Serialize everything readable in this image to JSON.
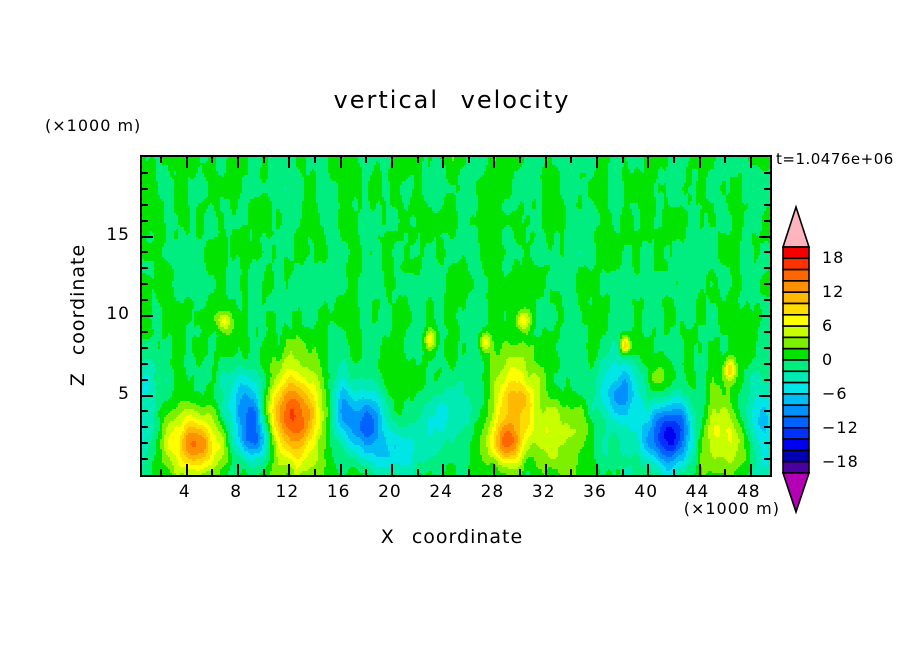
{
  "chart_data": {
    "type": "heatmap",
    "title": "vertical velocity",
    "timestamp_label": "t=1.0476e+06",
    "xlabel": "X coordinate",
    "ylabel": "Z coordinate",
    "x_unit_label": "(×1000 m)",
    "z_unit_label": "(×1000 m)",
    "x_range": [
      0.5,
      49.5
    ],
    "z_range": [
      0,
      20
    ],
    "x_major_ticks": [
      4,
      8,
      12,
      16,
      20,
      24,
      28,
      32,
      36,
      40,
      44,
      48
    ],
    "x_minor_ticks": [
      2,
      6,
      10,
      14,
      18,
      22,
      26,
      30,
      34,
      38,
      42,
      46
    ],
    "z_major_ticks": [
      5,
      10,
      15
    ],
    "z_minor_ticks": [
      1,
      2,
      3,
      4,
      6,
      7,
      8,
      9,
      11,
      12,
      13,
      14,
      16,
      17,
      18,
      19
    ],
    "colorbar": {
      "labeled_levels": [
        "18",
        "12",
        "6",
        "0",
        "−6",
        "−12",
        "−18"
      ],
      "labeled_level_values": [
        18,
        12,
        6,
        0,
        -6,
        -12,
        -18
      ],
      "min": -20,
      "max": 20,
      "cell_value_step": 2,
      "colors_top_to_bottom": [
        "#f50000",
        "#ff3200",
        "#ff6600",
        "#ff9100",
        "#ffb900",
        "#ffdc00",
        "#ffff00",
        "#c8ff00",
        "#7df000",
        "#00e400",
        "#00ed80",
        "#00ebb4",
        "#00e6e6",
        "#00bef5",
        "#0091ff",
        "#0062ff",
        "#0032ff",
        "#0000f0",
        "#0000b4",
        "#4b00a0"
      ],
      "over_color": "#ffb4be",
      "under_color": "#b400b4",
      "outline_color": "#000000"
    },
    "background_value": 0,
    "features": [
      {
        "x": 4.7,
        "z": 1.9,
        "peak": 13,
        "sx": 1.5,
        "sz": 1.4
      },
      {
        "x": 8.7,
        "z": 3.9,
        "peak": -10.5,
        "sx": 1.1,
        "sz": 1.7
      },
      {
        "x": 9.5,
        "z": 2.2,
        "peak": -7,
        "sx": 0.8,
        "sz": 1.0
      },
      {
        "x": 12.4,
        "z": 3.6,
        "peak": 15.5,
        "sx": 1.6,
        "sz": 2.1
      },
      {
        "x": 16.2,
        "z": 4.0,
        "peak": -9,
        "sx": 0.9,
        "sz": 1.6
      },
      {
        "x": 18.3,
        "z": 3.1,
        "peak": -9.5,
        "sx": 0.85,
        "sz": 1.4
      },
      {
        "x": 20.3,
        "z": 1.2,
        "peak": -4.5,
        "sx": 1.3,
        "sz": 1.0
      },
      {
        "x": 23.0,
        "z": 2.9,
        "peak": -3.8,
        "sx": 1.6,
        "sz": 1.4
      },
      {
        "x": 25.6,
        "z": 4.6,
        "peak": -3.2,
        "sx": 1.4,
        "sz": 1.3
      },
      {
        "x": 29.6,
        "z": 4.6,
        "peak": 11.5,
        "sx": 1.35,
        "sz": 1.9
      },
      {
        "x": 28.8,
        "z": 1.9,
        "peak": 11,
        "sx": 0.9,
        "sz": 0.9
      },
      {
        "x": 33.6,
        "z": 2.4,
        "peak": 5.2,
        "sx": 1.7,
        "sz": 1.4
      },
      {
        "x": 37.7,
        "z": 5.1,
        "peak": -9,
        "sx": 1.2,
        "sz": 1.5
      },
      {
        "x": 36.5,
        "z": 1.5,
        "peak": -2.5,
        "sx": 1.2,
        "sz": 1.0
      },
      {
        "x": 41.6,
        "z": 2.6,
        "peak": -15,
        "sx": 1.4,
        "sz": 1.5
      },
      {
        "x": 40.8,
        "z": 6.0,
        "peak": 4.5,
        "sx": 0.7,
        "sz": 1.3
      },
      {
        "x": 45.8,
        "z": 2.4,
        "peak": 7,
        "sx": 1.2,
        "sz": 1.6
      },
      {
        "x": 48.9,
        "z": 3.0,
        "peak": -5.5,
        "sx": 1.0,
        "sz": 2.2
      },
      {
        "x": 0.6,
        "z": 2.5,
        "peak": -4.5,
        "sx": 0.8,
        "sz": 1.8
      },
      {
        "x": 0.8,
        "z": 6.0,
        "peak": -3.5,
        "sx": 0.9,
        "sz": 1.5
      },
      {
        "x": 6.9,
        "z": 9.7,
        "peak": 6.5,
        "sx": 0.35,
        "sz": 0.4
      },
      {
        "x": 23.0,
        "z": 8.5,
        "peak": 6.5,
        "sx": 0.3,
        "sz": 0.4
      },
      {
        "x": 27.3,
        "z": 8.4,
        "peak": 6.8,
        "sx": 0.3,
        "sz": 0.4
      },
      {
        "x": 30.2,
        "z": 9.7,
        "peak": 6.5,
        "sx": 0.35,
        "sz": 0.4
      },
      {
        "x": 38.2,
        "z": 8.2,
        "peak": 10,
        "sx": 0.25,
        "sz": 0.4
      },
      {
        "x": 46.4,
        "z": 6.6,
        "peak": 8.5,
        "sx": 0.3,
        "sz": 0.5
      }
    ],
    "noise": {
      "amp1": 1.5,
      "sx1": 0.85,
      "sz1": 2.0,
      "amp2": 0.8,
      "sx2": 0.45,
      "sz2": 1.0,
      "seed": 7
    }
  }
}
